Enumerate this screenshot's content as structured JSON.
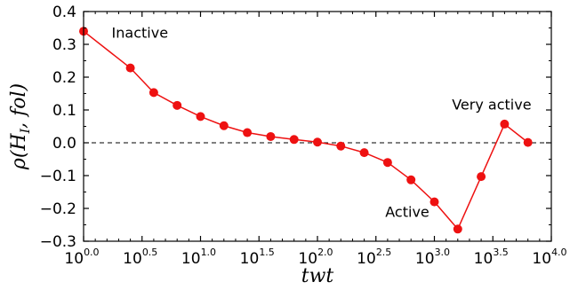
{
  "chart_data": {
    "type": "line",
    "xlabel": "twt",
    "ylabel": "ρ(H_I, fol)",
    "x_scale": "log10",
    "xlim_log10": [
      0.0,
      4.0
    ],
    "ylim": [
      -0.3,
      0.4
    ],
    "x_ticks": [
      {
        "base": "10",
        "exp": "0.0"
      },
      {
        "base": "10",
        "exp": "0.5"
      },
      {
        "base": "10",
        "exp": "1.0"
      },
      {
        "base": "10",
        "exp": "1.5"
      },
      {
        "base": "10",
        "exp": "2.0"
      },
      {
        "base": "10",
        "exp": "2.5"
      },
      {
        "base": "10",
        "exp": "3.0"
      },
      {
        "base": "10",
        "exp": "3.5"
      },
      {
        "base": "10",
        "exp": "4.0"
      }
    ],
    "y_ticks": [
      "0.4",
      "0.3",
      "0.2",
      "0.1",
      "0.0",
      "−0.1",
      "−0.2",
      "−0.3"
    ],
    "reference_line_y": 0.0,
    "color": "#ee1111",
    "series": [
      {
        "x_log10": [
          0.0,
          0.4,
          0.6,
          0.8,
          1.0,
          1.2,
          1.4,
          1.6,
          1.8,
          2.0,
          2.2,
          2.4,
          2.6,
          2.8,
          3.0,
          3.2,
          3.4,
          3.6,
          3.8
        ],
        "y": [
          0.34,
          0.228,
          0.153,
          0.114,
          0.08,
          0.052,
          0.031,
          0.019,
          0.01,
          0.002,
          -0.01,
          -0.03,
          -0.06,
          -0.113,
          -0.18,
          -0.263,
          -0.103,
          0.057,
          0.001
        ]
      }
    ],
    "annotations": [
      {
        "text": "Inactive",
        "x_log10": 0.24,
        "y": 0.32
      },
      {
        "text": "Very active",
        "x_log10": 3.15,
        "y": 0.101
      },
      {
        "text": "Active",
        "x_log10": 2.58,
        "y": -0.225
      }
    ]
  }
}
